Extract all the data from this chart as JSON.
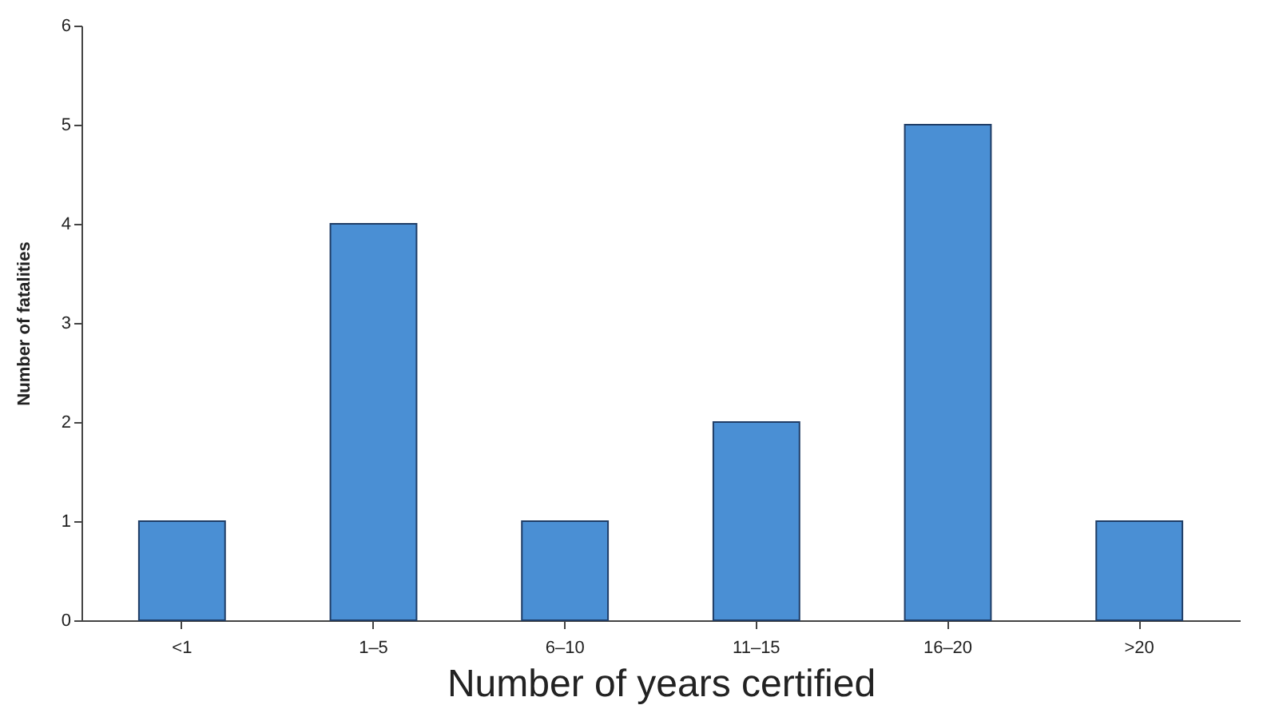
{
  "chart_data": {
    "type": "bar",
    "xlabel": "Number of years certified",
    "ylabel": "Number of fatalities",
    "categories": [
      "<1",
      "1–5",
      "6–10",
      "11–15",
      "16–20",
      ">20"
    ],
    "values": [
      1,
      4,
      1,
      2,
      5,
      1
    ],
    "color": "#4a8fd4",
    "ylim": [
      0,
      6
    ],
    "yticks": [
      0,
      1,
      2,
      3,
      4,
      5,
      6
    ],
    "grid": false
  }
}
